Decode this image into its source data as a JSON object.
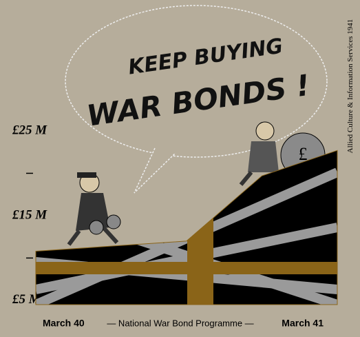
{
  "chart_data": {
    "type": "area",
    "title": [
      "KEEP BUYING",
      "WAR BONDS !"
    ],
    "subtitle": "— National War Bond Programme —",
    "credit": "Allied Culture & Information Services 1941",
    "categories": [
      "March 40",
      null,
      null,
      null,
      "March 41"
    ],
    "values": [
      10.8,
      11.4,
      12,
      19.7,
      22.7
    ],
    "ylim": [
      4.5,
      25
    ],
    "yticks": [
      {
        "value": 5,
        "label": "£5 M"
      },
      {
        "value": 15,
        "label": "£15 M"
      },
      {
        "value": 25,
        "label": "£25 M"
      }
    ],
    "minor_yticks": [
      10,
      20
    ],
    "colors": {
      "field": "#000000",
      "diagonal": "#9a9a9a",
      "cross": "#8a6418"
    }
  }
}
